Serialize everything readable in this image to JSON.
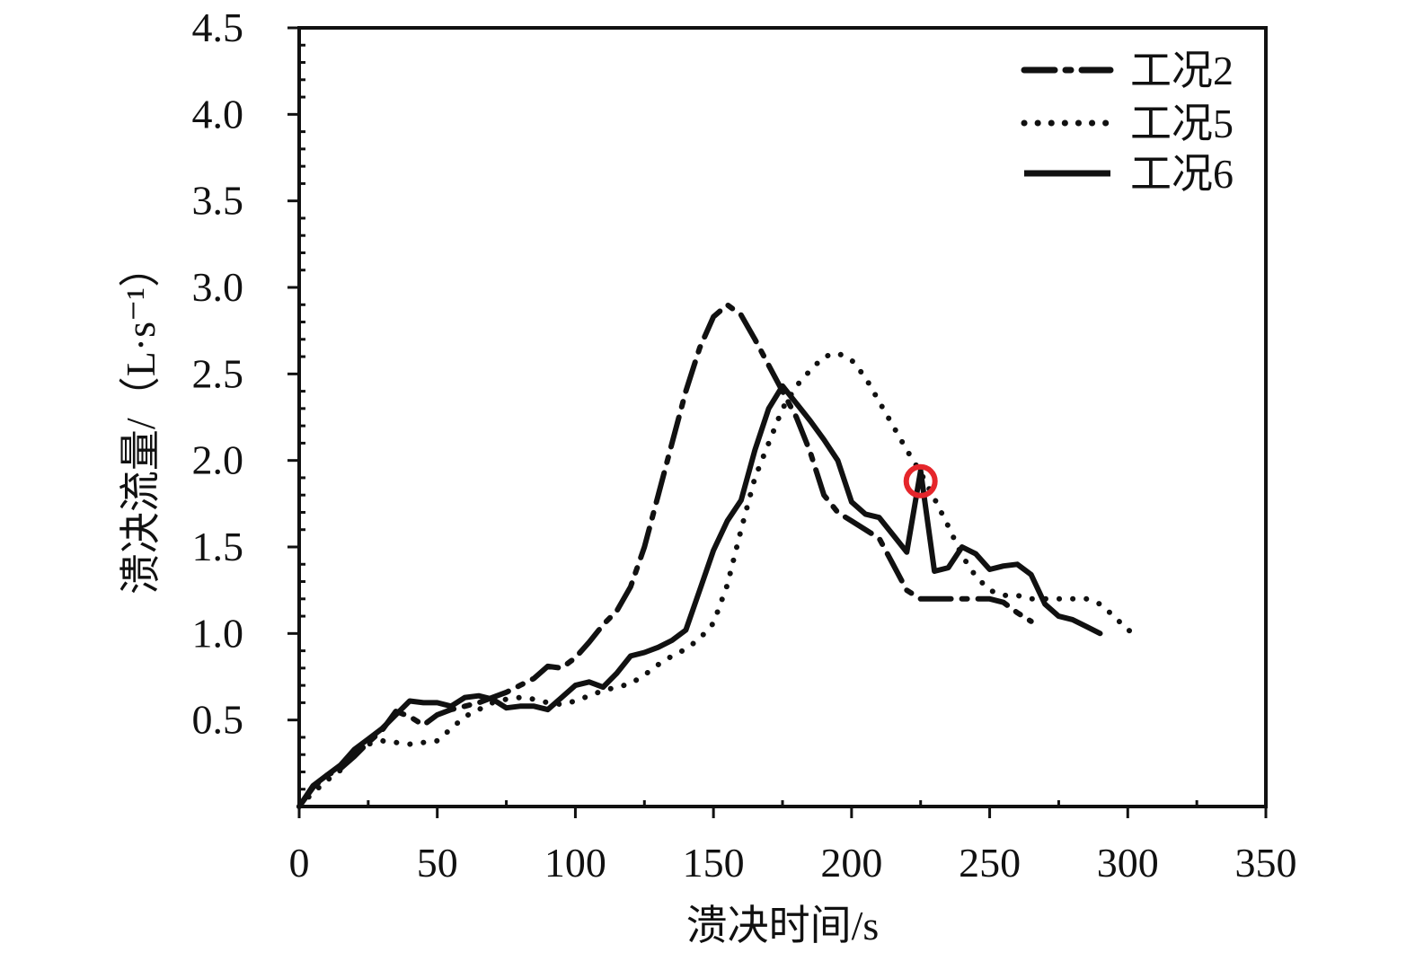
{
  "chart_data": {
    "type": "line",
    "title": "",
    "xlabel": "溃决时间/s",
    "ylabel": "溃决流量/（L·s⁻¹）",
    "xlim": [
      0,
      350
    ],
    "ylim": [
      0,
      4.5
    ],
    "xticks": [
      "0",
      "50",
      "100",
      "150",
      "200",
      "250",
      "300",
      "350"
    ],
    "yticks": [
      "0.5",
      "1.0",
      "1.5",
      "2.0",
      "2.5",
      "3.0",
      "3.5",
      "4.0",
      "4.5"
    ],
    "grid": false,
    "legend_position": "top-right",
    "series": [
      {
        "name": "工况2",
        "style": "dash-dot",
        "color": "#111111",
        "points": [
          [
            0,
            0.0
          ],
          [
            5,
            0.11
          ],
          [
            10,
            0.18
          ],
          [
            15,
            0.22
          ],
          [
            20,
            0.29
          ],
          [
            25,
            0.37
          ],
          [
            30,
            0.44
          ],
          [
            35,
            0.55
          ],
          [
            40,
            0.52
          ],
          [
            45,
            0.47
          ],
          [
            50,
            0.53
          ],
          [
            55,
            0.56
          ],
          [
            60,
            0.58
          ],
          [
            65,
            0.6
          ],
          [
            70,
            0.63
          ],
          [
            75,
            0.66
          ],
          [
            80,
            0.7
          ],
          [
            85,
            0.74
          ],
          [
            90,
            0.81
          ],
          [
            95,
            0.8
          ],
          [
            100,
            0.86
          ],
          [
            105,
            0.95
          ],
          [
            110,
            1.05
          ],
          [
            115,
            1.13
          ],
          [
            120,
            1.27
          ],
          [
            125,
            1.5
          ],
          [
            130,
            1.8
          ],
          [
            135,
            2.1
          ],
          [
            140,
            2.4
          ],
          [
            145,
            2.65
          ],
          [
            150,
            2.83
          ],
          [
            155,
            2.9
          ],
          [
            160,
            2.84
          ],
          [
            165,
            2.7
          ],
          [
            170,
            2.55
          ],
          [
            175,
            2.4
          ],
          [
            180,
            2.25
          ],
          [
            185,
            2.05
          ],
          [
            190,
            1.8
          ],
          [
            195,
            1.7
          ],
          [
            200,
            1.65
          ],
          [
            205,
            1.6
          ],
          [
            210,
            1.55
          ],
          [
            215,
            1.4
          ],
          [
            220,
            1.25
          ],
          [
            225,
            1.2
          ],
          [
            230,
            1.2
          ],
          [
            235,
            1.2
          ],
          [
            240,
            1.2
          ],
          [
            245,
            1.2
          ],
          [
            250,
            1.2
          ],
          [
            255,
            1.18
          ],
          [
            260,
            1.12
          ],
          [
            265,
            1.07
          ]
        ]
      },
      {
        "name": "工况5",
        "style": "dotted",
        "color": "#111111",
        "points": [
          [
            0,
            0.0
          ],
          [
            5,
            0.08
          ],
          [
            10,
            0.15
          ],
          [
            15,
            0.21
          ],
          [
            20,
            0.3
          ],
          [
            25,
            0.36
          ],
          [
            30,
            0.38
          ],
          [
            35,
            0.37
          ],
          [
            40,
            0.36
          ],
          [
            45,
            0.37
          ],
          [
            50,
            0.38
          ],
          [
            55,
            0.45
          ],
          [
            60,
            0.52
          ],
          [
            65,
            0.56
          ],
          [
            70,
            0.6
          ],
          [
            75,
            0.62
          ],
          [
            80,
            0.63
          ],
          [
            85,
            0.62
          ],
          [
            90,
            0.6
          ],
          [
            95,
            0.59
          ],
          [
            100,
            0.61
          ],
          [
            105,
            0.64
          ],
          [
            110,
            0.67
          ],
          [
            115,
            0.69
          ],
          [
            120,
            0.71
          ],
          [
            125,
            0.76
          ],
          [
            130,
            0.82
          ],
          [
            135,
            0.87
          ],
          [
            140,
            0.91
          ],
          [
            145,
            0.97
          ],
          [
            150,
            1.06
          ],
          [
            155,
            1.28
          ],
          [
            160,
            1.6
          ],
          [
            165,
            1.9
          ],
          [
            170,
            2.1
          ],
          [
            175,
            2.3
          ],
          [
            180,
            2.43
          ],
          [
            185,
            2.52
          ],
          [
            190,
            2.6
          ],
          [
            195,
            2.62
          ],
          [
            200,
            2.58
          ],
          [
            205,
            2.48
          ],
          [
            210,
            2.34
          ],
          [
            215,
            2.2
          ],
          [
            220,
            2.06
          ],
          [
            225,
            1.93
          ],
          [
            230,
            1.78
          ],
          [
            235,
            1.62
          ],
          [
            240,
            1.45
          ],
          [
            245,
            1.33
          ],
          [
            250,
            1.25
          ],
          [
            255,
            1.22
          ],
          [
            260,
            1.22
          ],
          [
            265,
            1.2
          ],
          [
            270,
            1.2
          ],
          [
            275,
            1.2
          ],
          [
            280,
            1.2
          ],
          [
            285,
            1.2
          ],
          [
            290,
            1.17
          ],
          [
            295,
            1.1
          ],
          [
            300,
            1.02
          ],
          [
            305,
            0.99
          ]
        ]
      },
      {
        "name": "工况6",
        "style": "solid",
        "color": "#111111",
        "points": [
          [
            0,
            0.0
          ],
          [
            5,
            0.12
          ],
          [
            10,
            0.18
          ],
          [
            15,
            0.24
          ],
          [
            20,
            0.33
          ],
          [
            25,
            0.39
          ],
          [
            30,
            0.45
          ],
          [
            35,
            0.53
          ],
          [
            40,
            0.61
          ],
          [
            45,
            0.6
          ],
          [
            50,
            0.6
          ],
          [
            55,
            0.58
          ],
          [
            60,
            0.63
          ],
          [
            65,
            0.64
          ],
          [
            70,
            0.62
          ],
          [
            75,
            0.57
          ],
          [
            80,
            0.58
          ],
          [
            85,
            0.58
          ],
          [
            90,
            0.56
          ],
          [
            95,
            0.63
          ],
          [
            100,
            0.7
          ],
          [
            105,
            0.72
          ],
          [
            110,
            0.69
          ],
          [
            115,
            0.77
          ],
          [
            120,
            0.87
          ],
          [
            125,
            0.89
          ],
          [
            130,
            0.92
          ],
          [
            135,
            0.96
          ],
          [
            140,
            1.02
          ],
          [
            145,
            1.25
          ],
          [
            150,
            1.48
          ],
          [
            155,
            1.65
          ],
          [
            160,
            1.77
          ],
          [
            165,
            2.06
          ],
          [
            170,
            2.3
          ],
          [
            175,
            2.43
          ],
          [
            180,
            2.33
          ],
          [
            185,
            2.23
          ],
          [
            190,
            2.12
          ],
          [
            195,
            2.0
          ],
          [
            200,
            1.76
          ],
          [
            205,
            1.69
          ],
          [
            210,
            1.67
          ],
          [
            215,
            1.57
          ],
          [
            220,
            1.47
          ],
          [
            225,
            1.94
          ],
          [
            230,
            1.36
          ],
          [
            235,
            1.38
          ],
          [
            240,
            1.5
          ],
          [
            245,
            1.46
          ],
          [
            250,
            1.37
          ],
          [
            255,
            1.39
          ],
          [
            260,
            1.4
          ],
          [
            265,
            1.34
          ],
          [
            270,
            1.17
          ],
          [
            275,
            1.1
          ],
          [
            280,
            1.08
          ],
          [
            285,
            1.04
          ],
          [
            290,
            1.0
          ]
        ]
      }
    ],
    "annotations": [
      {
        "type": "circle-marker",
        "x": 225,
        "y": 1.88,
        "color": "#e5262b"
      }
    ]
  }
}
